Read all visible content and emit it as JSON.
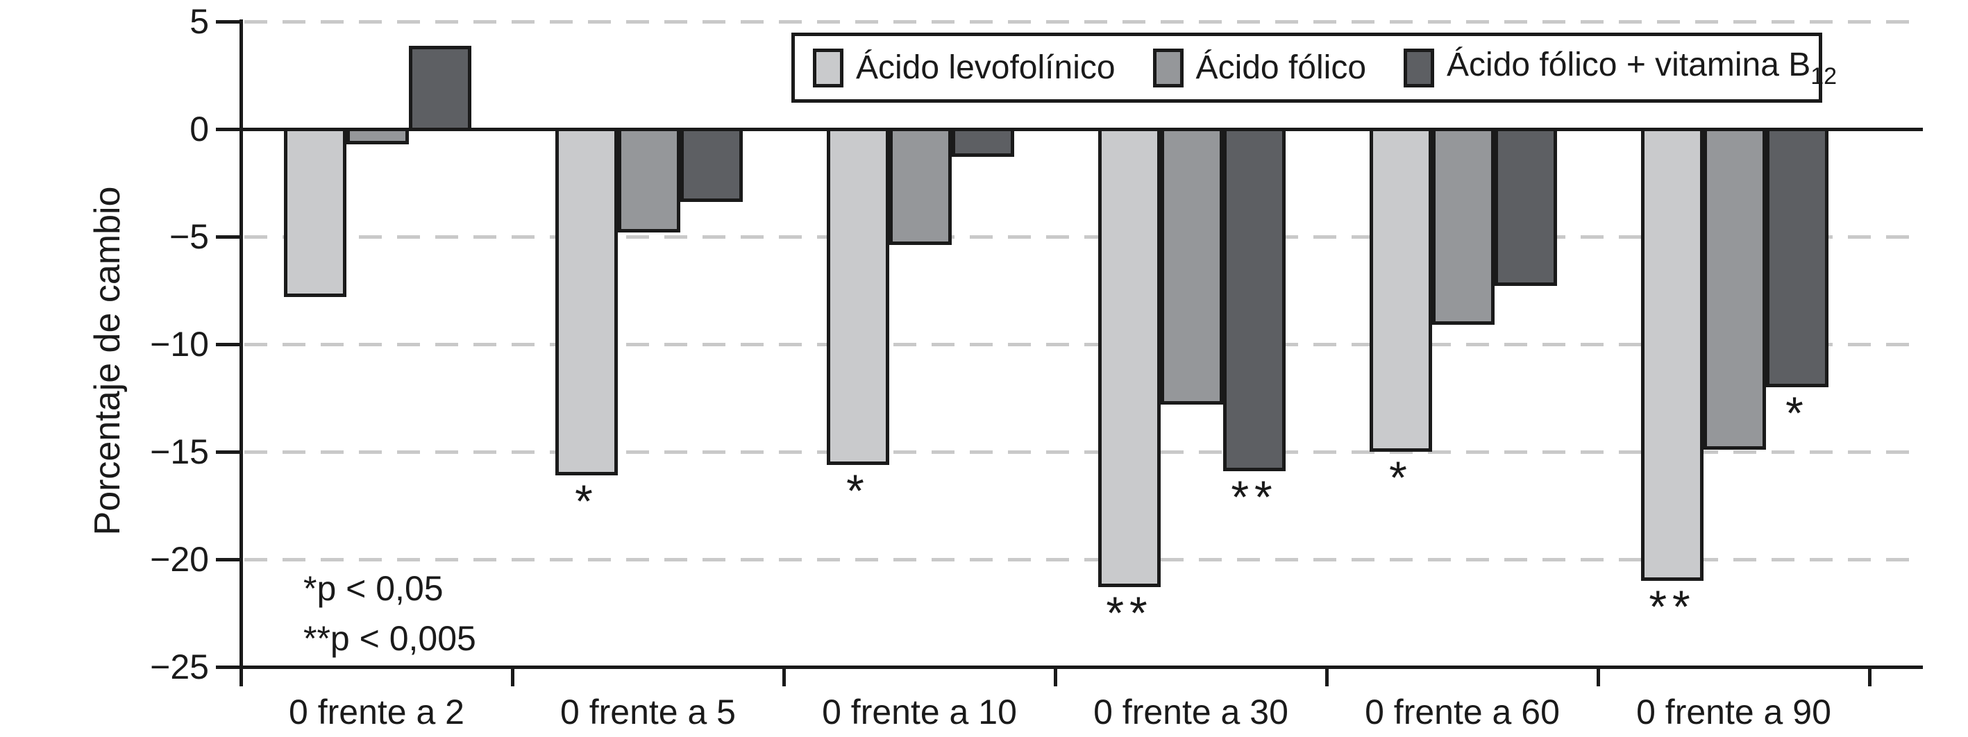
{
  "chart_data": {
    "type": "bar",
    "title": "",
    "ylabel": "Porcentaje de cambio",
    "xlabel": "",
    "ylim": [
      -25,
      5
    ],
    "yticks": [
      5,
      0,
      -5,
      -10,
      -15,
      -20,
      -25
    ],
    "ytick_labels": [
      "5",
      "0",
      "−5",
      "−10",
      "−15",
      "−20",
      "−25"
    ],
    "grid_values": [
      5,
      -5,
      -10,
      -15,
      -20
    ],
    "grid_style": "dashed-horizontal",
    "legend_position": "top-right",
    "categories": [
      "0 frente a 2",
      "0 frente a 5",
      "0 frente a 10",
      "0 frente a 30",
      "0 frente a 60",
      "0 frente a 90"
    ],
    "series": [
      {
        "name": "Ácido levofolínico",
        "name_sub": "",
        "color": "#c9cacc",
        "values": [
          -7.7,
          -16.0,
          -15.5,
          -21.2,
          -14.9,
          -20.9
        ],
        "sig": [
          "",
          "*",
          "*",
          "**",
          "*",
          "**"
        ]
      },
      {
        "name": "Ácido fólico",
        "name_sub": "",
        "color": "#95979a",
        "values": [
          -0.6,
          -4.7,
          -5.3,
          -12.7,
          -9.0,
          -14.8
        ],
        "sig": [
          "",
          "",
          "",
          "",
          "",
          ""
        ]
      },
      {
        "name": "Ácido fólico + vitamina B",
        "name_sub": "12",
        "color": "#5d5f63",
        "values": [
          3.8,
          -3.3,
          -1.2,
          -15.8,
          -7.2,
          -11.9
        ],
        "sig": [
          "",
          "",
          "",
          "**",
          "",
          "*"
        ]
      }
    ],
    "annotations": [
      "*p < 0,05",
      "**p < 0,005"
    ]
  }
}
